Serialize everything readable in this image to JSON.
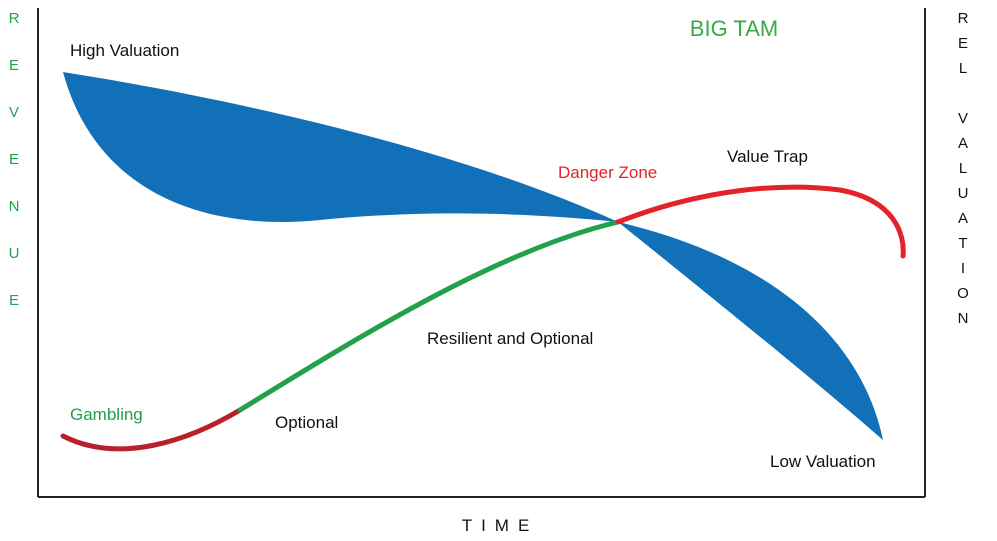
{
  "title": "BIG TAM",
  "x_axis_label": "TIME",
  "left_axis_label": "REVENUE",
  "right_axis_label": "REL VALUATION",
  "labels": {
    "high_valuation": "High Valuation",
    "danger_zone": "Danger Zone",
    "value_trap": "Value Trap",
    "resilient_and_optional": "Resilient and Optional",
    "gambling": "Gambling",
    "optional": "Optional",
    "low_valuation": "Low Valuation"
  },
  "colors": {
    "valuation_band": "#1170b8",
    "green": "#22a04a",
    "red": "#e4222a",
    "dark_red": "#b8202a",
    "text": "#111111",
    "title_green": "#3aaa47",
    "axis": "#222222"
  }
}
